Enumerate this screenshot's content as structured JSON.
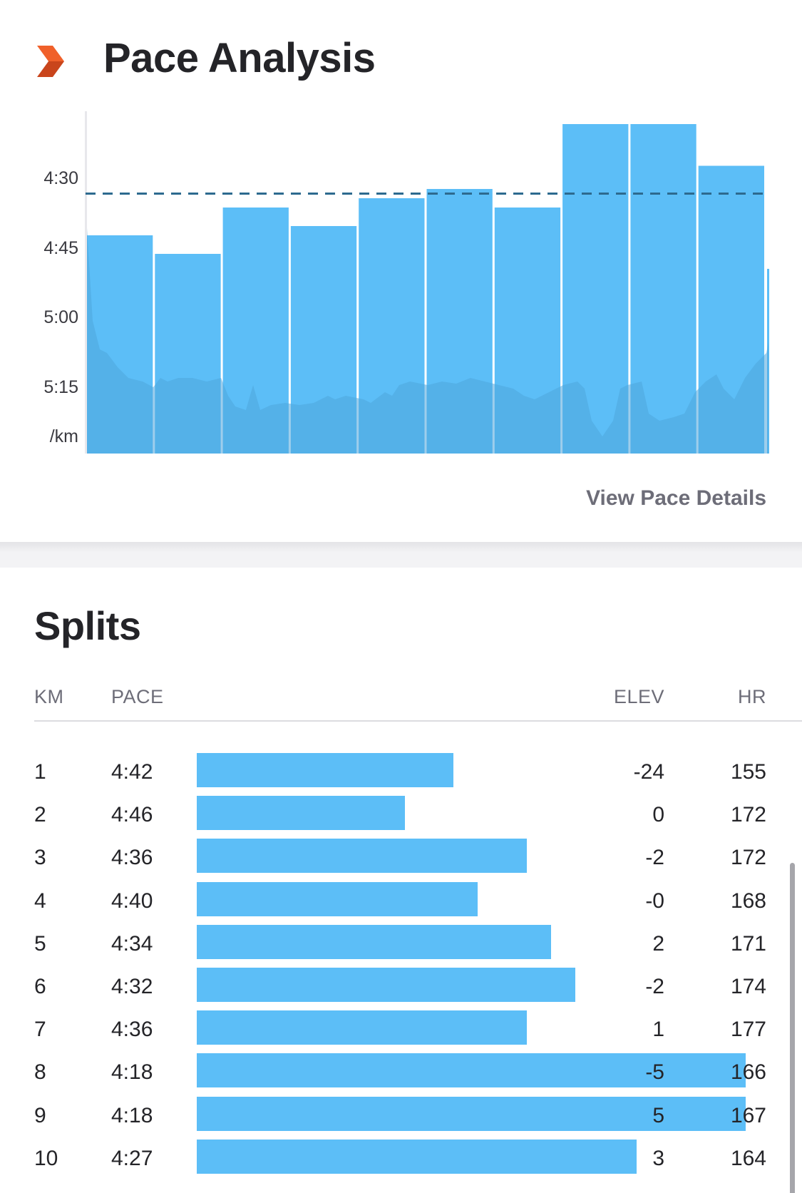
{
  "pace_analysis": {
    "title": "Pace Analysis",
    "view_details_label": "View Pace Details",
    "logo_icon": "chevron-logo-icon"
  },
  "chart_data": {
    "type": "bar",
    "categories": [
      "1",
      "2",
      "3",
      "4",
      "5",
      "6",
      "7",
      "8",
      "9",
      "10"
    ],
    "values": [
      "4:42",
      "4:46",
      "4:36",
      "4:40",
      "4:34",
      "4:32",
      "4:36",
      "4:18",
      "4:18",
      "4:27"
    ],
    "values_seconds_per_km": [
      282,
      286,
      276,
      280,
      274,
      272,
      276,
      258,
      258,
      267
    ],
    "y_tick_labels": [
      "4:30",
      "4:45",
      "5:00",
      "5:15"
    ],
    "y_tick_seconds": [
      270,
      285,
      300,
      315
    ],
    "ylabel": "/km",
    "average_pace_seconds": 273,
    "average_line_style": "dashed",
    "bar_color": "#5cbef7",
    "elevation_fill_color": "#4fa6dc",
    "grid": false
  },
  "splits": {
    "title": "Splits",
    "columns": {
      "km": "KM",
      "pace": "PACE",
      "elev": "ELEV",
      "hr": "HR"
    },
    "rows": [
      {
        "km": "1",
        "pace": "4:42",
        "pace_seconds": 282,
        "elev": "-24",
        "hr": "155"
      },
      {
        "km": "2",
        "pace": "4:46",
        "pace_seconds": 286,
        "elev": "0",
        "hr": "172"
      },
      {
        "km": "3",
        "pace": "4:36",
        "pace_seconds": 276,
        "elev": "-2",
        "hr": "172"
      },
      {
        "km": "4",
        "pace": "4:40",
        "pace_seconds": 280,
        "elev": "-0",
        "hr": "168"
      },
      {
        "km": "5",
        "pace": "4:34",
        "pace_seconds": 274,
        "elev": "2",
        "hr": "171"
      },
      {
        "km": "6",
        "pace": "4:32",
        "pace_seconds": 272,
        "elev": "-2",
        "hr": "174"
      },
      {
        "km": "7",
        "pace": "4:36",
        "pace_seconds": 276,
        "elev": "1",
        "hr": "177"
      },
      {
        "km": "8",
        "pace": "4:18",
        "pace_seconds": 258,
        "elev": "-5",
        "hr": "166"
      },
      {
        "km": "9",
        "pace": "4:18",
        "pace_seconds": 258,
        "elev": "5",
        "hr": "167"
      },
      {
        "km": "10",
        "pace": "4:27",
        "pace_seconds": 267,
        "elev": "3",
        "hr": "164"
      }
    ]
  },
  "colors": {
    "accent_orange": "#f0602a",
    "bar_blue": "#5cbef7",
    "muted_text": "#6d6d78"
  }
}
